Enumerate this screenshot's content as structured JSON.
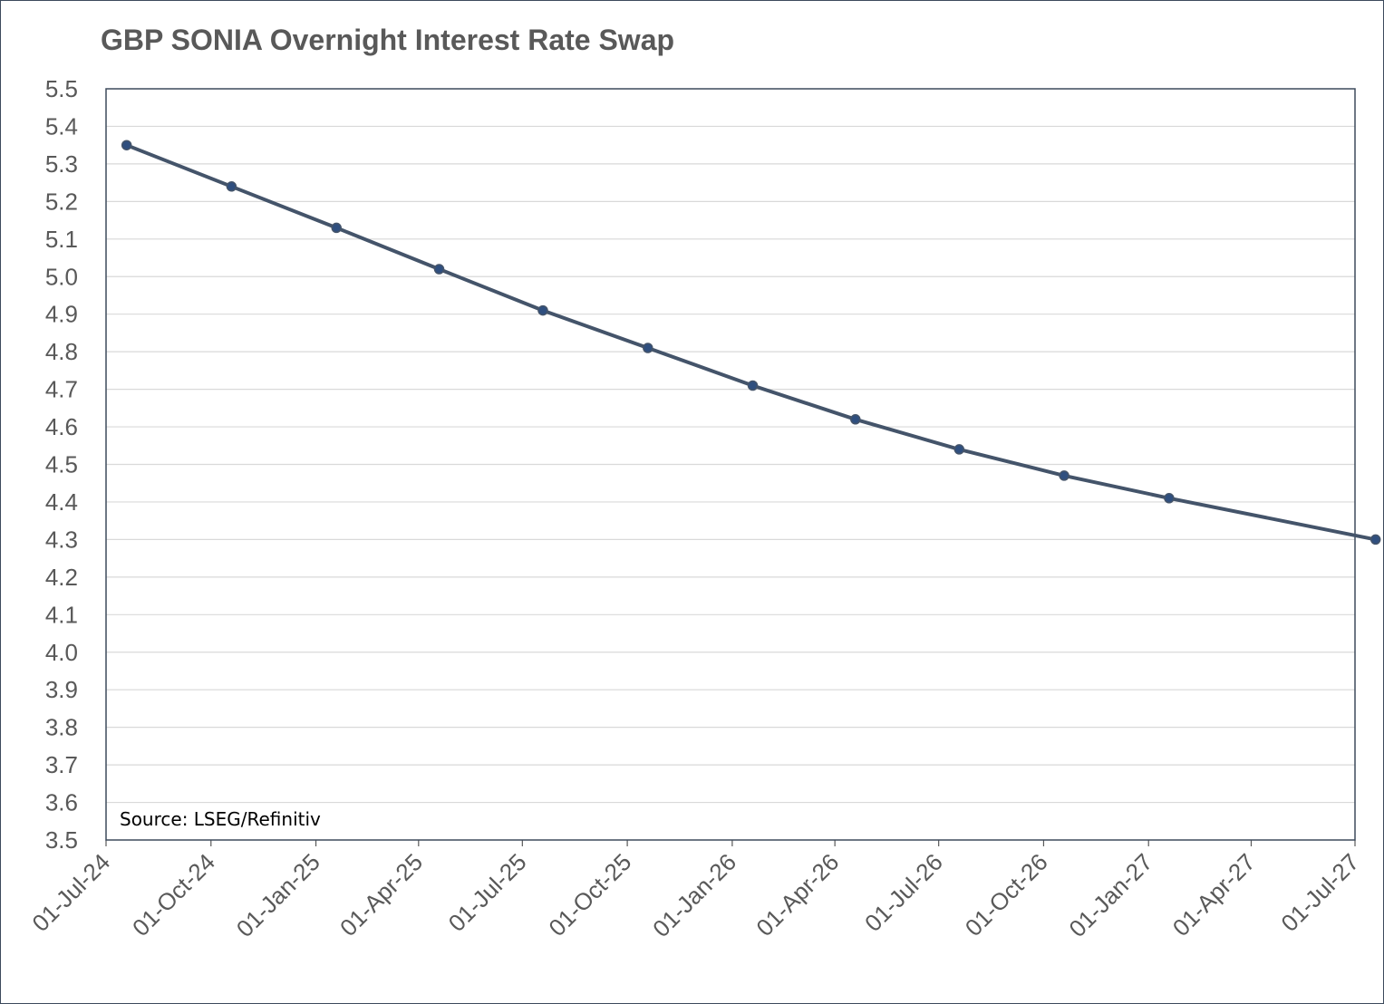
{
  "chart_data": {
    "type": "line",
    "title": "GBP SONIA Overnight Interest Rate Swap",
    "xlabel": "",
    "ylabel": "",
    "ylim": [
      3.5,
      5.5
    ],
    "ytick_step": 0.1,
    "xlim": [
      "2024-07-01",
      "2027-07-01"
    ],
    "x_tick_labels": [
      "01-Jul-24",
      "01-Oct-24",
      "01-Jan-25",
      "01-Apr-25",
      "01-Jul-25",
      "01-Oct-25",
      "01-Jan-26",
      "01-Apr-26",
      "01-Jul-26",
      "01-Oct-26",
      "01-Jan-27",
      "01-Apr-27",
      "01-Jul-27"
    ],
    "x_tick_dates": [
      "2024-07-01",
      "2024-10-01",
      "2025-01-01",
      "2025-04-01",
      "2025-07-01",
      "2025-10-01",
      "2026-01-01",
      "2026-04-01",
      "2026-07-01",
      "2026-10-01",
      "2027-01-01",
      "2027-04-01",
      "2027-07-01"
    ],
    "grid": true,
    "legend": false,
    "annotation": "Source: LSEG/Refinitiv",
    "series": [
      {
        "color": "#44546a",
        "marker_color": "#2f4f7f",
        "x": [
          "2024-07-19",
          "2024-10-19",
          "2025-01-19",
          "2025-04-19",
          "2025-07-19",
          "2025-10-19",
          "2026-01-19",
          "2026-04-19",
          "2026-07-19",
          "2026-10-19",
          "2027-01-19",
          "2027-07-19"
        ],
        "values": [
          5.35,
          5.24,
          5.13,
          5.02,
          4.91,
          4.81,
          4.71,
          4.62,
          4.54,
          4.47,
          4.41,
          4.3
        ]
      }
    ]
  }
}
